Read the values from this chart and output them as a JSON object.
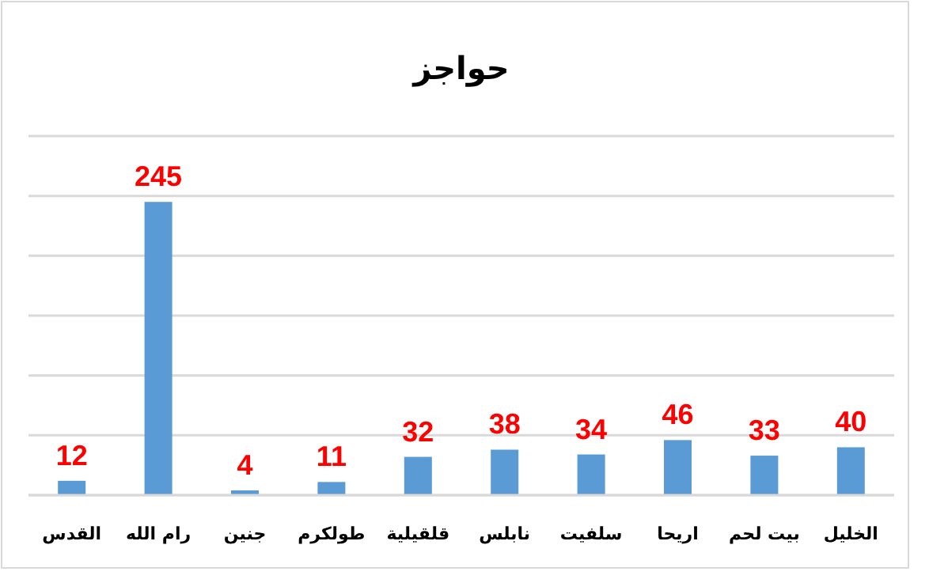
{
  "chart_data": {
    "type": "bar",
    "title": "حواجز",
    "categories": [
      "القدس",
      "رام الله",
      "جنين",
      "طولكرم",
      "قلقيلية",
      "نابلس",
      "سلفيت",
      "اريحا",
      "بيت لحم",
      "الخليل"
    ],
    "values": [
      12,
      245,
      4,
      11,
      32,
      38,
      34,
      46,
      33,
      40
    ],
    "color": "#5b9bd5",
    "ylim": [
      0,
      300
    ],
    "yticks": [
      {
        "value": 0,
        "label": null
      },
      {
        "value": 50,
        "label": null
      },
      {
        "value": 100,
        "label": null
      },
      {
        "value": 150,
        "label": null
      },
      {
        "value": 200,
        "label": null
      },
      {
        "value": 250,
        "label": null
      },
      {
        "value": 300,
        "label": null
      }
    ],
    "grid": "y",
    "data_labels": true
  }
}
